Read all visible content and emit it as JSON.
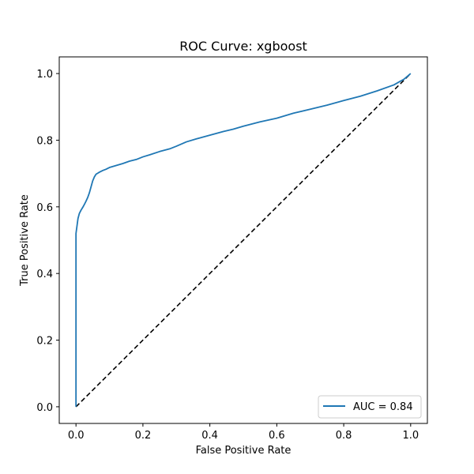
{
  "chart_data": {
    "type": "line",
    "title": "ROC Curve: xgboost",
    "xlabel": "False Positive Rate",
    "ylabel": "True Positive Rate",
    "xlim": [
      -0.05,
      1.05
    ],
    "ylim": [
      -0.05,
      1.05
    ],
    "xticks": [
      0.0,
      0.2,
      0.4,
      0.6,
      0.8,
      1.0
    ],
    "yticks": [
      0.0,
      0.2,
      0.4,
      0.6,
      0.8,
      1.0
    ],
    "xtick_labels": [
      "0.0",
      "0.2",
      "0.4",
      "0.6",
      "0.8",
      "1.0"
    ],
    "ytick_labels": [
      "0.0",
      "0.2",
      "0.4",
      "0.6",
      "0.8",
      "1.0"
    ],
    "grid": false,
    "legend_position": "lower-right",
    "series": [
      {
        "name": "AUC = 0.84",
        "color": "#1f77b4",
        "style": "solid",
        "x": [
          0.0,
          0.0,
          0.0,
          0.002,
          0.004,
          0.006,
          0.01,
          0.015,
          0.02,
          0.025,
          0.03,
          0.035,
          0.04,
          0.045,
          0.05,
          0.055,
          0.06,
          0.065,
          0.07,
          0.08,
          0.09,
          0.1,
          0.12,
          0.14,
          0.16,
          0.18,
          0.2,
          0.22,
          0.25,
          0.28,
          0.3,
          0.33,
          0.36,
          0.4,
          0.44,
          0.47,
          0.5,
          0.55,
          0.6,
          0.65,
          0.7,
          0.75,
          0.8,
          0.85,
          0.9,
          0.95,
          0.98,
          1.0
        ],
        "y": [
          0.0,
          0.35,
          0.52,
          0.535,
          0.55,
          0.565,
          0.58,
          0.59,
          0.598,
          0.607,
          0.617,
          0.628,
          0.642,
          0.66,
          0.678,
          0.69,
          0.698,
          0.701,
          0.704,
          0.709,
          0.713,
          0.718,
          0.724,
          0.73,
          0.737,
          0.742,
          0.75,
          0.756,
          0.766,
          0.774,
          0.782,
          0.795,
          0.804,
          0.815,
          0.826,
          0.833,
          0.842,
          0.855,
          0.866,
          0.881,
          0.893,
          0.905,
          0.919,
          0.932,
          0.948,
          0.966,
          0.983,
          1.0
        ]
      },
      {
        "name": "",
        "color": "#000000",
        "style": "dashed",
        "x": [
          0.0,
          1.0
        ],
        "y": [
          0.0,
          1.0
        ]
      }
    ]
  }
}
